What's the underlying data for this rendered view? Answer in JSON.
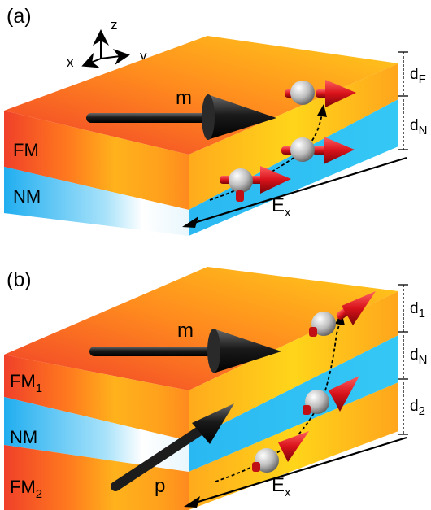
{
  "panel_a": {
    "label": "(a)",
    "axes": {
      "z": "z",
      "x": "x",
      "y": "y"
    },
    "layers": {
      "top": "FM",
      "bottom": "NM"
    },
    "magnetization": "m",
    "field": {
      "base": "E",
      "sub": "x"
    },
    "thickness": [
      {
        "base": "d",
        "sub": "F"
      },
      {
        "base": "d",
        "sub": "N"
      }
    ]
  },
  "panel_b": {
    "label": "(b)",
    "layers": {
      "top": {
        "base": "FM",
        "sub": "1"
      },
      "middle": "NM",
      "bottom": {
        "base": "FM",
        "sub": "2"
      }
    },
    "magnetization": "m",
    "polarizer": "p",
    "field": {
      "base": "E",
      "sub": "x"
    },
    "thickness": [
      {
        "base": "d",
        "sub": "1"
      },
      {
        "base": "d",
        "sub": "N"
      },
      {
        "base": "d",
        "sub": "2"
      }
    ]
  },
  "colors": {
    "fm_front": "#ff8a1e",
    "fm_side": "#ffc21a",
    "fm_edge": "#f0402a",
    "nm_front": "#27b4ef",
    "nm_side": "#33c6f5",
    "arrow_black": "#1c1c1c",
    "spin_red": "#d8121a"
  }
}
